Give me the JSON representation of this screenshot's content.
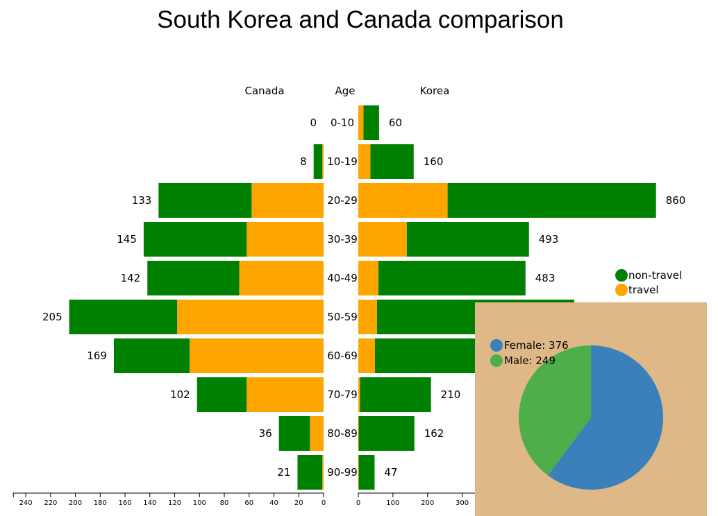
{
  "chart_data": [
    {
      "type": "bar",
      "orientation": "horizontal-butterfly",
      "title": "South Korea and Canada comparison",
      "headers": {
        "left": "Canada",
        "center": "Age",
        "right": "Korea"
      },
      "categories": [
        "0-10",
        "10-19",
        "20-29",
        "30-39",
        "40-49",
        "50-59",
        "60-69",
        "70-79",
        "80-89",
        "90-99"
      ],
      "left_totals": [
        "0",
        "8",
        "133",
        "145",
        "142",
        "205",
        "169",
        "102",
        "36",
        "21"
      ],
      "right_totals": [
        "60",
        "160",
        "860",
        "493",
        "483",
        "",
        "",
        "210",
        "162",
        "47"
      ],
      "stacked": true,
      "series": [
        {
          "name": "travel",
          "color": "#FFA500",
          "left_values": [
            0,
            1,
            58,
            62,
            68,
            118,
            108,
            62,
            11,
            1
          ],
          "right_values": [
            15,
            35,
            258,
            140,
            58,
            54,
            48,
            5,
            1,
            1
          ]
        },
        {
          "name": "non-travel",
          "color": "#008000",
          "left_values": [
            0,
            7,
            75,
            83,
            74,
            87,
            61,
            40,
            25,
            20
          ],
          "right_values": [
            45,
            125,
            602,
            353,
            425,
            570,
            540,
            205,
            161,
            46
          ]
        }
      ],
      "left_axis": {
        "ticks": [
          "240",
          "220",
          "200",
          "180",
          "160",
          "140",
          "120",
          "100",
          "80",
          "60",
          "40",
          "20",
          "0"
        ],
        "range": [
          0,
          250
        ]
      },
      "right_axis": {
        "ticks": [
          "0",
          "100",
          "200",
          "300"
        ],
        "range": [
          0,
          340
        ]
      },
      "legend": [
        {
          "label": "non-travel",
          "color": "#008000"
        },
        {
          "label": "travel",
          "color": "#FFA500"
        }
      ],
      "legend_position": "right"
    },
    {
      "type": "pie",
      "background": "#DEB887",
      "slices": [
        {
          "label": "Female: 376",
          "value": 376,
          "color": "#3A80BA"
        },
        {
          "label": "Male: 249",
          "value": 249,
          "color": "#4DAE4A"
        }
      ],
      "legend_position": "top-left"
    }
  ]
}
